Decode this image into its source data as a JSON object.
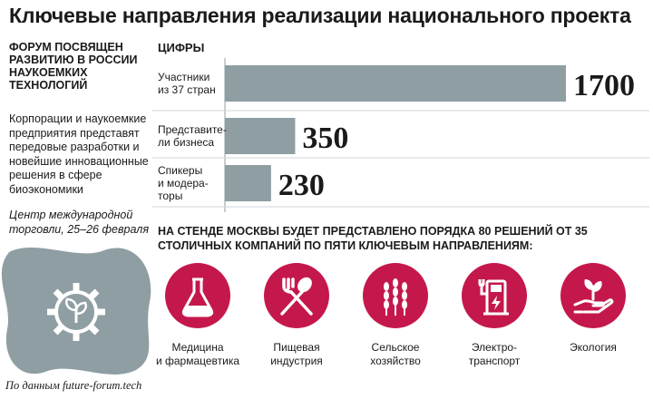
{
  "title": "Ключевые направления реализации национального проекта",
  "left": {
    "heading": "ФОРУМ ПОСВЯЩЕН\nРАЗВИТИЮ В РОССИИ\nНАУКОЕМКИХ\nТЕХНОЛОГИЙ",
    "body": "Корпорации и наукоемкие предприятия представят передовые разработки и новейшие инновационные решения в сфере биоэкономики",
    "event": "Центр международной торговли, 25–26 февраля",
    "source": "По данным future-forum.tech"
  },
  "figures_label": "ЦИФРЫ",
  "chart_data": {
    "type": "bar",
    "orientation": "horizontal",
    "categories": [
      "Участники\nиз 37 стран",
      "Представите-\nли бизнеса",
      "Спикеры\nи модера-\nторы"
    ],
    "values": [
      1700,
      350,
      230
    ],
    "value_labels": [
      "1700",
      "350",
      "230"
    ],
    "bar_color": "#8e9ea3",
    "xlim": [
      0,
      1700
    ],
    "grid": false
  },
  "stand_text": "НА СТЕНДЕ МОСКВЫ БУДЕТ ПРЕДСТАВЛЕНО ПОРЯДКА 80 РЕШЕНИЙ ОТ 35 СТОЛИЧНЫХ КОМПАНИЙ ПО ПЯТИ КЛЮЧЕВЫМ НАПРАВЛЕНИЯМ:",
  "directions": [
    {
      "label": "Медицина\nи фармацевтика",
      "icon": "flask-icon"
    },
    {
      "label": "Пищевая\nиндустрия",
      "icon": "fork-spoon-icon"
    },
    {
      "label": "Сельское\nхозяйство",
      "icon": "wheat-icon"
    },
    {
      "label": "Электро-\nтранспорт",
      "icon": "charging-station-icon"
    },
    {
      "label": "Экология",
      "icon": "hand-sprout-icon"
    }
  ],
  "colors": {
    "accent": "#c4184c",
    "bar": "#8e9ea3",
    "blob": "#8e9ea3"
  }
}
